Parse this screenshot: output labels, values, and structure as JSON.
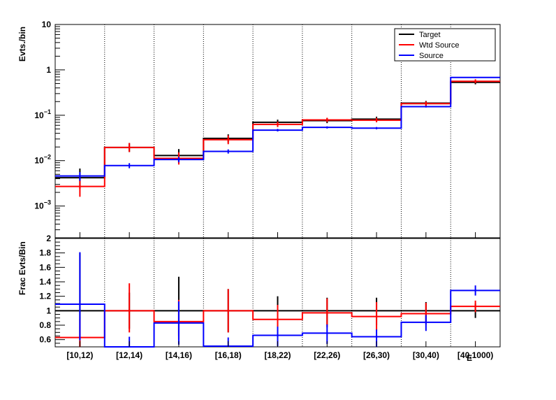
{
  "chart_data": {
    "type": "step-histogram",
    "categories": [
      "[10,12)",
      "[12,14)",
      "[14,16)",
      "[16,18)",
      "[18,22)",
      "[22,26)",
      "[26,30)",
      "[30,40)",
      "[40,1000)"
    ],
    "x_axis_title": "E",
    "colors": {
      "Target": "#000000",
      "Wtd Source": "#ff0000",
      "Source": "#0000ff"
    },
    "legend_position": "top-right",
    "top": {
      "ylabel": "Evts./bin",
      "yscale": "log",
      "ylim": [
        0.0002,
        10
      ],
      "y_tick_labels": [
        {
          "value": 10,
          "mant": "10",
          "exp": ""
        },
        {
          "value": 1,
          "mant": "1",
          "exp": ""
        },
        {
          "value": 0.1,
          "mant": "10",
          "exp": "−1"
        },
        {
          "value": 0.01,
          "mant": "10",
          "exp": "−2"
        },
        {
          "value": 0.001,
          "mant": "10",
          "exp": "−3"
        }
      ],
      "series": [
        {
          "name": "Target",
          "values": [
            0.0042,
            0.0195,
            0.013,
            0.031,
            0.07,
            0.076,
            0.082,
            0.185,
            0.53
          ],
          "err_low": [
            0.0018,
            0.004,
            0.004,
            0.006,
            0.009,
            0.009,
            0.009,
            0.02,
            0.05
          ],
          "err_high": [
            0.0025,
            0.005,
            0.005,
            0.007,
            0.01,
            0.01,
            0.011,
            0.022,
            0.06
          ]
        },
        {
          "name": "Wtd Source",
          "values": [
            0.0027,
            0.0195,
            0.0112,
            0.029,
            0.063,
            0.079,
            0.078,
            0.18,
            0.56
          ],
          "err_low": [
            0.0011,
            0.004,
            0.003,
            0.006,
            0.008,
            0.008,
            0.008,
            0.02,
            0.05
          ],
          "err_high": [
            0.0014,
            0.005,
            0.004,
            0.007,
            0.009,
            0.009,
            0.01,
            0.022,
            0.06
          ]
        },
        {
          "name": "Source",
          "values": [
            0.0046,
            0.0078,
            0.0106,
            0.016,
            0.047,
            0.054,
            0.052,
            0.155,
            0.68
          ],
          "err_low": [
            0.001,
            0.001,
            0.0014,
            0.0017,
            0.003,
            0.003,
            0.003,
            0.007,
            0.02
          ],
          "err_high": [
            0.001,
            0.001,
            0.0014,
            0.0017,
            0.003,
            0.003,
            0.003,
            0.007,
            0.02
          ]
        }
      ]
    },
    "bottom": {
      "ylabel": "Frac Evts/Bin",
      "ylim": [
        0.5,
        2.0
      ],
      "y_ticks": [
        0.6,
        0.8,
        1.0,
        1.2,
        1.4,
        1.6,
        1.8,
        2.0
      ],
      "y_tick_labels": [
        "0.6",
        "0.8",
        "1",
        "1.2",
        "1.4",
        "1.6",
        "1.8",
        "2"
      ],
      "series": [
        {
          "name": "Target",
          "values": [
            1,
            1,
            1,
            1,
            1,
            1,
            1,
            1,
            1
          ],
          "err_low": [
            0.5,
            0.25,
            0.35,
            0.3,
            0.2,
            0.2,
            0.2,
            0.15,
            0.1
          ],
          "err_high": [
            0.8,
            0.25,
            0.47,
            0.3,
            0.2,
            0.18,
            0.18,
            0.12,
            0.1
          ]
        },
        {
          "name": "Wtd Source",
          "values": [
            0.63,
            1.0,
            0.85,
            1.0,
            0.88,
            0.97,
            0.92,
            0.96,
            1.06
          ],
          "err_low": [
            0.25,
            0.3,
            0.25,
            0.3,
            0.2,
            0.2,
            0.2,
            0.15,
            0.08
          ],
          "err_high": [
            0.25,
            0.38,
            0.3,
            0.3,
            0.2,
            0.2,
            0.2,
            0.15,
            0.08
          ]
        },
        {
          "name": "Source",
          "values": [
            1.09,
            0.49,
            0.83,
            0.51,
            0.66,
            0.69,
            0.64,
            0.84,
            1.28
          ],
          "err_low": [
            0.5,
            0.15,
            0.3,
            0.15,
            0.15,
            0.15,
            0.15,
            0.12,
            0.07
          ],
          "err_high": [
            0.72,
            0.15,
            0.3,
            0.12,
            0.12,
            0.12,
            0.1,
            0.1,
            0.07
          ]
        }
      ]
    }
  }
}
